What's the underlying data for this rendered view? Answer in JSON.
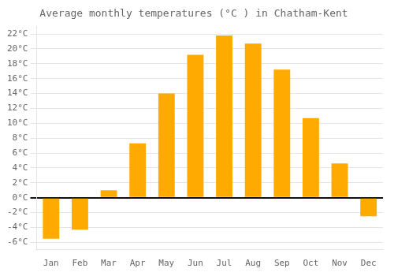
{
  "chart_data": {
    "type": "bar",
    "title": "Average monthly temperatures (°C ) in Chatham-Kent",
    "categories": [
      "Jan",
      "Feb",
      "Mar",
      "Apr",
      "May",
      "Jun",
      "Jul",
      "Aug",
      "Sep",
      "Oct",
      "Nov",
      "Dec"
    ],
    "values": [
      -5.5,
      -4.3,
      1.0,
      7.3,
      14.0,
      19.2,
      21.8,
      20.7,
      17.2,
      10.7,
      4.6,
      -2.5
    ],
    "color": "#FFAA00",
    "ylim": [
      -7,
      23
    ],
    "yticks": [
      {
        "value": -6,
        "label": "-6°C"
      },
      {
        "value": -4,
        "label": "-4°C"
      },
      {
        "value": -2,
        "label": "-2°C"
      },
      {
        "value": 0,
        "label": "0°C"
      },
      {
        "value": 2,
        "label": "2°C"
      },
      {
        "value": 4,
        "label": "4°C"
      },
      {
        "value": 6,
        "label": "6°C"
      },
      {
        "value": 8,
        "label": "8°C"
      },
      {
        "value": 10,
        "label": "10°C"
      },
      {
        "value": 12,
        "label": "12°C"
      },
      {
        "value": 14,
        "label": "14°C"
      },
      {
        "value": 16,
        "label": "16°C"
      },
      {
        "value": 18,
        "label": "18°C"
      },
      {
        "value": 20,
        "label": "20°C"
      },
      {
        "value": 22,
        "label": "22°C"
      }
    ],
    "grid": true
  }
}
